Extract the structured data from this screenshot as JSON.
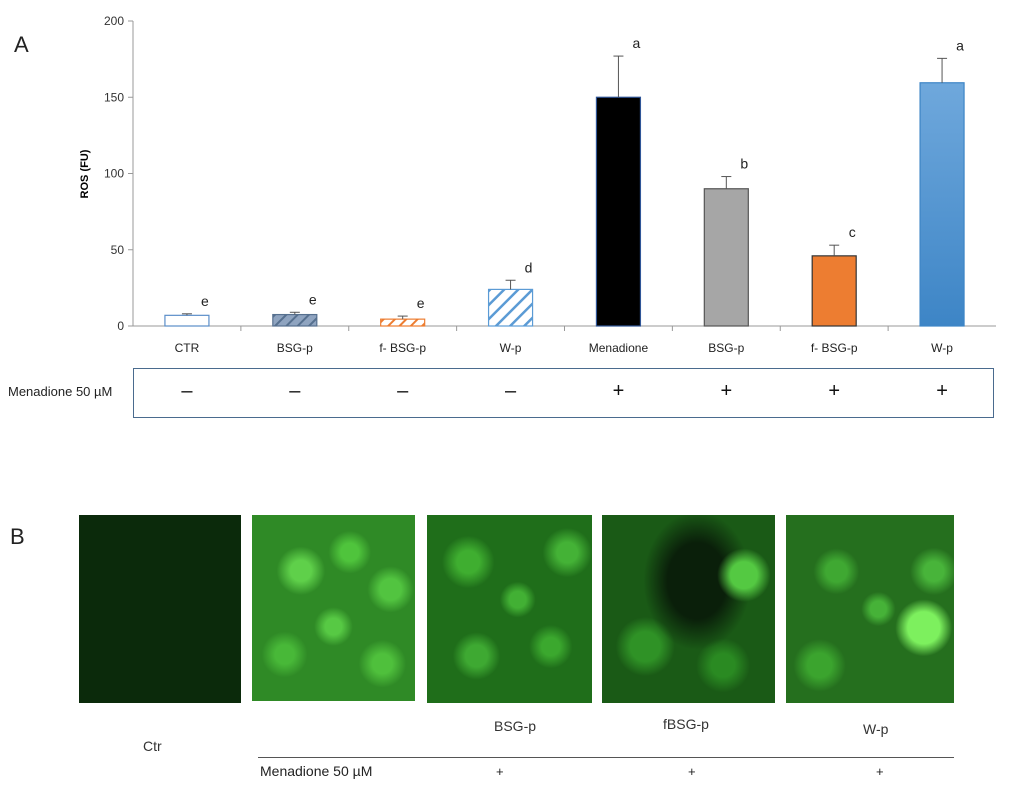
{
  "panel_a_label": "A",
  "panel_b_label": "B",
  "chart_data": {
    "type": "bar",
    "ylabel": "ROS (FU)",
    "xlabel": "",
    "ylim": [
      0,
      200
    ],
    "yticks": [
      0,
      50,
      100,
      150,
      200
    ],
    "categories": [
      "CTR",
      "BSG-p",
      "f- BSG-p",
      "W-p",
      "Menadione",
      "BSG-p",
      "f- BSG-p",
      "W-p"
    ],
    "values": [
      7,
      7.5,
      4.5,
      24,
      150,
      90,
      46,
      159.5
    ],
    "errors": [
      1,
      1.5,
      2,
      6,
      27,
      8,
      7,
      16
    ],
    "letters": [
      "e",
      "e",
      "e",
      "d",
      "a",
      "b",
      "c",
      "a"
    ],
    "grid": false,
    "colors": {
      "white_bar": "#ffffff",
      "blue_outline": "#5b8ec9",
      "slate_hatch": "#6e86a6",
      "orange_hatch": "#ed7d31",
      "light_blue_hatch": "#5b9bd5",
      "black": "#000000",
      "gray": "#a6a6a6",
      "orange": "#ed7d31",
      "blue_gradient_top": "#6fa8dc",
      "blue_gradient_bottom": "#3d85c6"
    }
  },
  "menadione_row": {
    "label": "Menadione 50 µM",
    "signs": [
      "–",
      "–",
      "–",
      "–",
      "+",
      "+",
      "+",
      "+"
    ]
  },
  "panel_b": {
    "captions": [
      "Ctr",
      "BSG-p",
      "fBSG-p",
      "W-p"
    ],
    "menadione_label": "Menadione 50 µM",
    "plus_signs": [
      "+",
      "+",
      "+"
    ]
  }
}
